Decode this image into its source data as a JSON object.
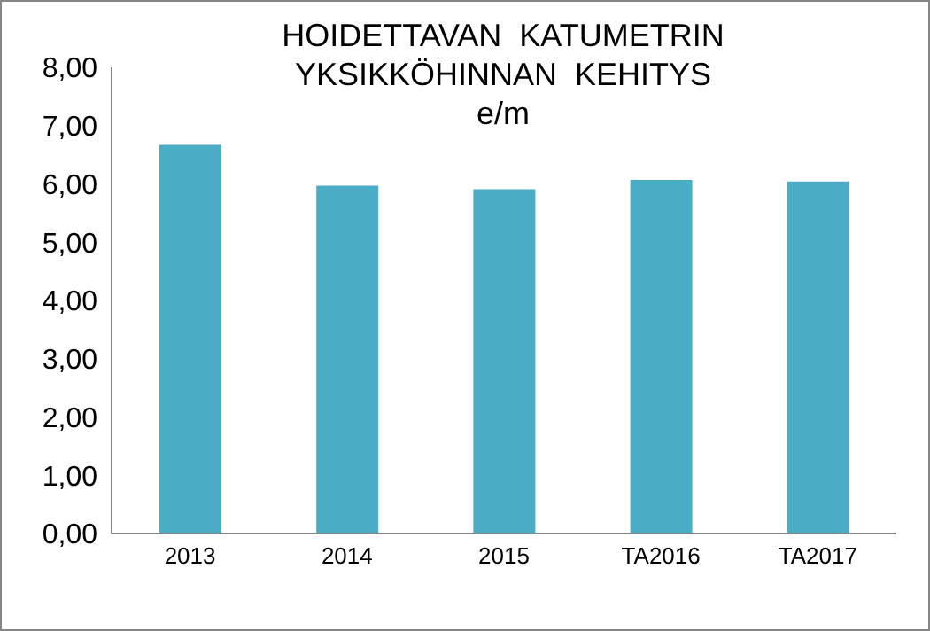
{
  "chart_data": {
    "type": "bar",
    "title": "HOIDETTAVAN  KATUMETRIN\nYKSIKKÖHINNAN  KEHITYS",
    "subtitle": "e/m",
    "categories": [
      "2013",
      "2014",
      "2015",
      "TA2016",
      "TA2017"
    ],
    "values": [
      6.67,
      5.97,
      5.91,
      6.07,
      6.04
    ],
    "color": "#4bacc6",
    "ylim": [
      0,
      8
    ],
    "yticks": [
      {
        "value": 0,
        "label": "0,00"
      },
      {
        "value": 1,
        "label": "1,00"
      },
      {
        "value": 2,
        "label": "2,00"
      },
      {
        "value": 3,
        "label": "3,00"
      },
      {
        "value": 4,
        "label": "4,00"
      },
      {
        "value": 5,
        "label": "5,00"
      },
      {
        "value": 6,
        "label": "6,00"
      },
      {
        "value": 7,
        "label": "7,00"
      },
      {
        "value": 8,
        "label": "8,00"
      }
    ],
    "grid": false,
    "legend": false
  }
}
